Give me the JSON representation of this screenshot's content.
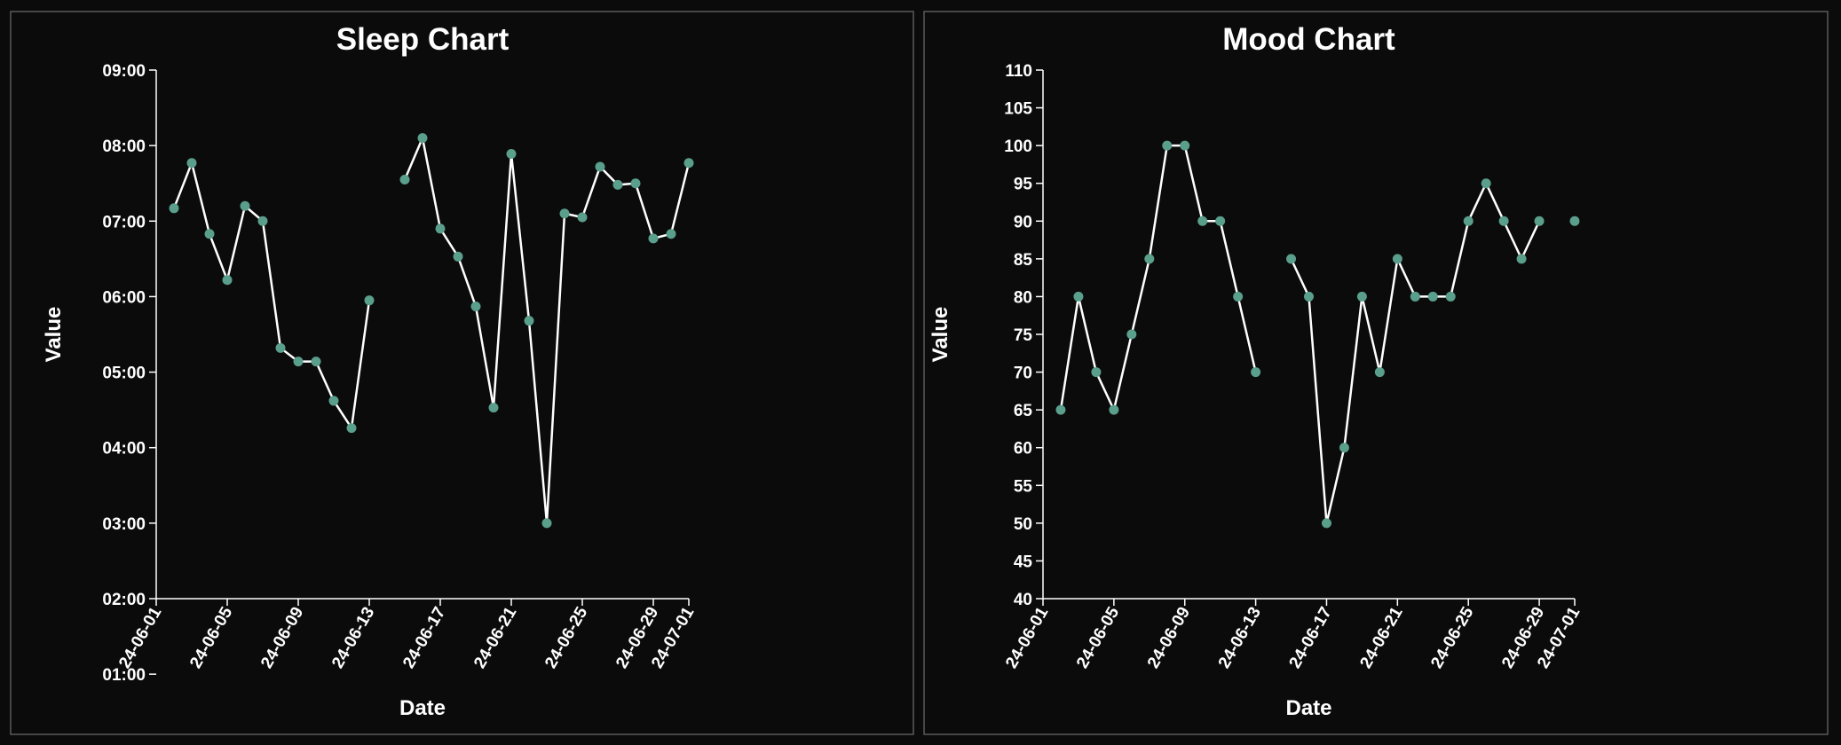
{
  "chart_data": [
    {
      "type": "line",
      "title": "Sleep Chart",
      "x_label": "Date",
      "y_label": "Value",
      "color": "#5a9e8c",
      "line_color": "#ffffff",
      "x": [
        "24-06-02",
        "24-06-03",
        "24-06-04",
        "24-06-05",
        "24-06-06",
        "24-06-07",
        "24-06-08",
        "24-06-09",
        "24-06-10",
        "24-06-11",
        "24-06-12",
        "24-06-13",
        "24-06-14",
        "24-06-15",
        "24-06-16",
        "24-06-17",
        "24-06-18",
        "24-06-19",
        "24-06-20",
        "24-06-21",
        "24-06-22",
        "24-06-23",
        "24-06-24",
        "24-06-25",
        "24-06-26",
        "24-06-27",
        "24-06-28",
        "24-06-29",
        "24-06-30",
        "24-07-01"
      ],
      "values": [
        7.17,
        7.77,
        6.83,
        6.22,
        7.2,
        7.0,
        5.32,
        5.14,
        5.14,
        4.62,
        4.26,
        5.95,
        null,
        7.55,
        8.1,
        6.9,
        6.53,
        5.87,
        4.53,
        7.89,
        5.68,
        3.0,
        7.1,
        7.05,
        7.72,
        7.48,
        7.5,
        6.77,
        6.83,
        7.77
      ],
      "xlim": [
        "24-06-01",
        "24-07-01"
      ],
      "xticks": [
        "24-06-01",
        "24-06-05",
        "24-06-09",
        "24-06-13",
        "24-06-17",
        "24-06-21",
        "24-06-25",
        "24-06-29",
        "24-07-01"
      ],
      "ylim": [
        2,
        9
      ],
      "yticks": [
        {
          "value": 1,
          "label": "01:00"
        },
        {
          "value": 2,
          "label": "02:00"
        },
        {
          "value": 3,
          "label": "03:00"
        },
        {
          "value": 4,
          "label": "04:00"
        },
        {
          "value": 5,
          "label": "05:00"
        },
        {
          "value": 6,
          "label": "06:00"
        },
        {
          "value": 7,
          "label": "07:00"
        },
        {
          "value": 8,
          "label": "08:00"
        },
        {
          "value": 9,
          "label": "09:00"
        }
      ]
    },
    {
      "type": "line",
      "title": "Mood Chart",
      "x_label": "Date",
      "y_label": "Value",
      "color": "#5a9e8c",
      "line_color": "#ffffff",
      "x": [
        "24-06-02",
        "24-06-03",
        "24-06-04",
        "24-06-05",
        "24-06-06",
        "24-06-07",
        "24-06-08",
        "24-06-09",
        "24-06-10",
        "24-06-11",
        "24-06-12",
        "24-06-13",
        "24-06-14",
        "24-06-15",
        "24-06-16",
        "24-06-17",
        "24-06-18",
        "24-06-19",
        "24-06-20",
        "24-06-21",
        "24-06-22",
        "24-06-23",
        "24-06-24",
        "24-06-25",
        "24-06-26",
        "24-06-27",
        "24-06-28",
        "24-06-29",
        "24-06-30",
        "24-07-01"
      ],
      "values": [
        65,
        80,
        70,
        65,
        75,
        85,
        100,
        100,
        90,
        90,
        80,
        70,
        null,
        85,
        80,
        50,
        60,
        80,
        70,
        85,
        80,
        80,
        80,
        90,
        95,
        90,
        85,
        90,
        null,
        90
      ],
      "xlim": [
        "24-06-01",
        "24-07-01"
      ],
      "xticks": [
        "24-06-01",
        "24-06-05",
        "24-06-09",
        "24-06-13",
        "24-06-17",
        "24-06-21",
        "24-06-25",
        "24-06-29",
        "24-07-01"
      ],
      "ylim": [
        40,
        110
      ],
      "yticks": [
        40,
        45,
        50,
        55,
        60,
        65,
        70,
        75,
        80,
        85,
        90,
        95,
        100,
        105,
        110
      ]
    }
  ]
}
